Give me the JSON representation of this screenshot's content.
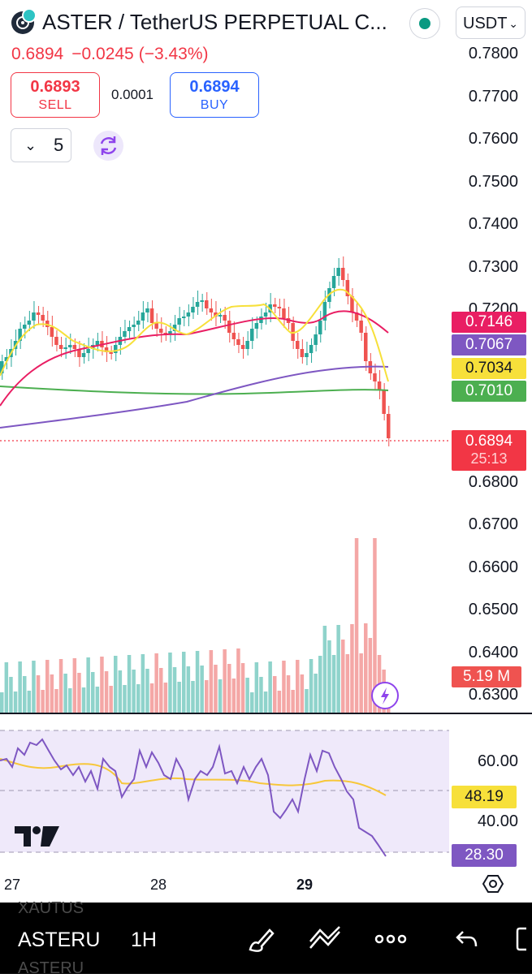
{
  "header": {
    "title": "ASTER / TetherUS PERPETUAL C...",
    "currency": "USDT",
    "last_price": "0.6894",
    "change": "−0.0245",
    "change_pct": "(−3.43%)",
    "sell_price": "0.6893",
    "sell_label": "SELL",
    "buy_price": "0.6894",
    "buy_label": "BUY",
    "spread": "0.0001",
    "interval_value": "5"
  },
  "price_axis": {
    "ticks": [
      "0.7800",
      "0.7700",
      "0.7600",
      "0.7500",
      "0.7400",
      "0.7300",
      "0.7200",
      "0.6800",
      "0.6700",
      "0.6600",
      "0.6500",
      "0.6400",
      "0.6300"
    ],
    "ma_labels": [
      {
        "value": "0.7146",
        "color": "#e91e63"
      },
      {
        "value": "0.7067",
        "color": "#7e57c2"
      },
      {
        "value": "0.7034",
        "color": "#f7e03a"
      },
      {
        "value": "0.7010",
        "color": "#4caf50"
      }
    ],
    "current_price": "0.6894",
    "countdown": "25:13",
    "volume_label": "5.19 M"
  },
  "rsi": {
    "ticks": [
      "60.00",
      "40.00"
    ],
    "rsi_value": "28.30",
    "ma_value": "48.19"
  },
  "time_axis": [
    "27",
    "28",
    "29"
  ],
  "toolbar": {
    "symbol": "ASTERU",
    "interval": "1H",
    "ghost_top": "XAUTUS",
    "ghost_bottom": "ASTERU"
  },
  "colors": {
    "up": "#26a69a",
    "down": "#ef5350",
    "accent": "#2962ff"
  },
  "icons": [
    "brush-icon",
    "trend-lines-icon",
    "more-icon",
    "undo-icon",
    "replay-icon",
    "refresh-icon",
    "settings-icon",
    "lightning-icon",
    "tradingview-logo"
  ]
}
